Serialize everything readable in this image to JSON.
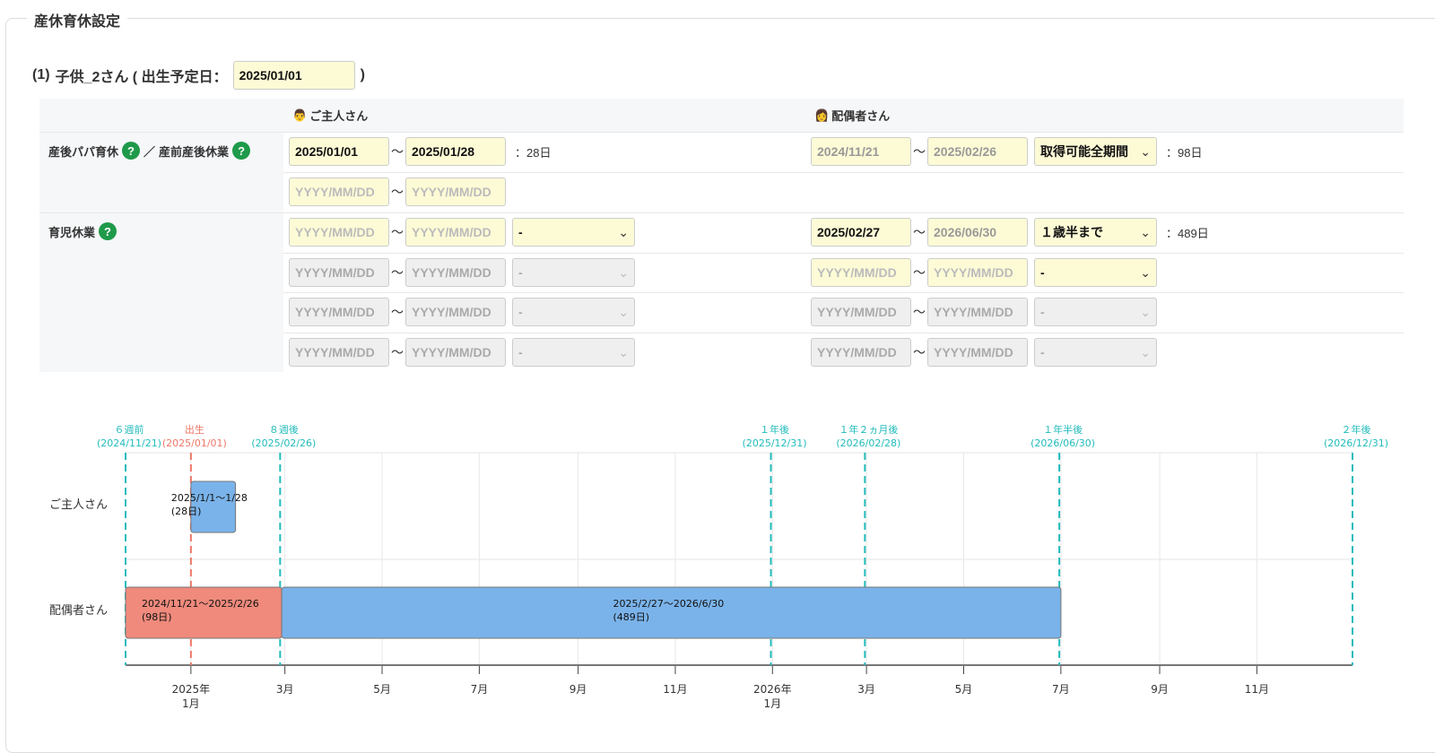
{
  "section_title": "産休育休設定",
  "child": {
    "prefix": "(1)",
    "name": "子供_2さん ( 出生予定日：",
    "due_date": "2025/01/01",
    "suffix": ")"
  },
  "columns": {
    "husband": "ご主人さん",
    "spouse": "配偶者さん"
  },
  "rows": {
    "paternity": {
      "label_a": "産後パパ育休",
      "label_sep": "／",
      "label_b": "産前産後休業"
    },
    "childcare": {
      "label": "育児休業"
    }
  },
  "help_icon": "?",
  "placeholder": "YYYY/MM/DD",
  "husband": {
    "paternity": [
      {
        "start": "2025/01/01",
        "end": "2025/01/28",
        "days": "：28日"
      },
      {
        "start": "",
        "end": ""
      }
    ],
    "childcare": [
      {
        "start": "",
        "end": "",
        "select": "-"
      },
      {
        "start": "",
        "end": "",
        "select": "-"
      },
      {
        "start": "",
        "end": "",
        "select": "-"
      },
      {
        "start": "",
        "end": "",
        "select": "-"
      }
    ]
  },
  "spouse": {
    "paternity": [
      {
        "start": "2024/11/21",
        "end": "2025/02/26",
        "select": "取得可能全期間",
        "days": "：98日"
      }
    ],
    "childcare": [
      {
        "start": "2025/02/27",
        "end": "2026/06/30",
        "select": "１歳半まで",
        "days": "：489日"
      },
      {
        "start": "",
        "end": "",
        "select": "-"
      },
      {
        "start": "",
        "end": "",
        "select": "-"
      },
      {
        "start": "",
        "end": "",
        "select": "-"
      }
    ]
  },
  "colors": {
    "milestone": "#22bbbb",
    "birth": "#ee7766",
    "bar_leave": "#7ab3ea",
    "bar_maternity": "#ef8a7c",
    "input_bg": "#fdfbd6",
    "help": "#1e9a4a"
  },
  "chart_data": {
    "type": "timeline",
    "xlim": [
      "2024-11-21",
      "2026-12-31"
    ],
    "grid": true,
    "rows": [
      "ご主人さん",
      "配偶者さん"
    ],
    "ticks": [
      {
        "date": "2025-01-01",
        "label": "2025年",
        "sub": "1月"
      },
      {
        "date": "2025-03-01",
        "label": "3月"
      },
      {
        "date": "2025-05-01",
        "label": "5月"
      },
      {
        "date": "2025-07-01",
        "label": "7月"
      },
      {
        "date": "2025-09-01",
        "label": "9月"
      },
      {
        "date": "2025-11-01",
        "label": "11月"
      },
      {
        "date": "2026-01-01",
        "label": "2026年",
        "sub": "1月"
      },
      {
        "date": "2026-03-01",
        "label": "3月"
      },
      {
        "date": "2026-05-01",
        "label": "5月"
      },
      {
        "date": "2026-07-01",
        "label": "7月"
      },
      {
        "date": "2026-09-01",
        "label": "9月"
      },
      {
        "date": "2026-11-01",
        "label": "11月"
      }
    ],
    "milestones": [
      {
        "date": "2024-11-21",
        "label": "６週前",
        "sub": "(2024/11/21)",
        "kind": "milestone"
      },
      {
        "date": "2025-01-01",
        "label": "出生",
        "sub": "(2025/01/01)",
        "kind": "birth"
      },
      {
        "date": "2025-02-26",
        "label": "８週後",
        "sub": "(2025/02/26)",
        "kind": "milestone"
      },
      {
        "date": "2025-12-31",
        "label": "１年後",
        "sub": "(2025/12/31)",
        "kind": "milestone"
      },
      {
        "date": "2026-02-28",
        "label": "１年２ヵ月後",
        "sub": "(2026/02/28)",
        "kind": "milestone"
      },
      {
        "date": "2026-06-30",
        "label": "１年半後",
        "sub": "(2026/06/30)",
        "kind": "milestone"
      },
      {
        "date": "2026-12-31",
        "label": "２年後",
        "sub": "(2026/12/31)",
        "kind": "milestone"
      }
    ],
    "bars": [
      {
        "row": 0,
        "start": "2025-01-01",
        "end": "2025-01-28",
        "label": "2025/1/1〜1/28",
        "sub": "(28日)",
        "kind": "bar_leave"
      },
      {
        "row": 1,
        "start": "2024-11-21",
        "end": "2025-02-26",
        "label": "2024/11/21〜2025/2/26",
        "sub": "(98日)",
        "kind": "bar_maternity"
      },
      {
        "row": 1,
        "start": "2025-02-27",
        "end": "2026-06-30",
        "label": "2025/2/27〜2026/6/30",
        "sub": "(489日)",
        "kind": "bar_leave"
      }
    ]
  }
}
